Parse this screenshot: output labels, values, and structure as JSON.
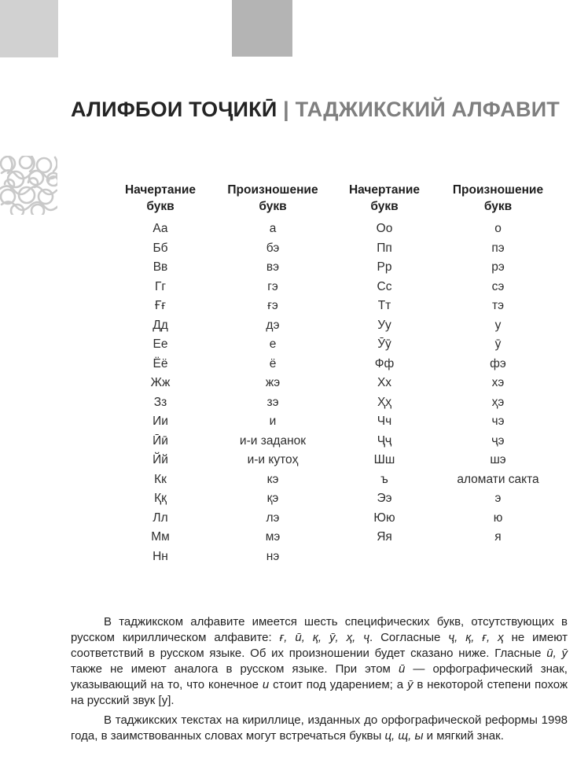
{
  "page": {
    "decor": {
      "left_block_color": "#d1d1d1",
      "right_block_color": "#b4b4b4",
      "ornament_color": "#c9c9c9"
    },
    "title": {
      "tajik": "АЛИФБОИ ТОҶИКӢ",
      "separator": "|",
      "russian": "ТАДЖИКСКИЙ АЛФАВИТ",
      "primary_color": "#242424",
      "secondary_color": "#7f7f7f"
    },
    "table": {
      "headers": [
        {
          "line1": "Начертание",
          "line2": "букв"
        },
        {
          "line1": "Произношение",
          "line2": "букв"
        },
        {
          "line1": "Начертание",
          "line2": "букв"
        },
        {
          "line1": "Произношение",
          "line2": "букв"
        }
      ],
      "left_rows": [
        [
          "Аа",
          "а"
        ],
        [
          "Бб",
          "бэ"
        ],
        [
          "Вв",
          "вэ"
        ],
        [
          "Гг",
          "гэ"
        ],
        [
          "Ғғ",
          "ғэ"
        ],
        [
          "Дд",
          "дэ"
        ],
        [
          "Ее",
          "е"
        ],
        [
          "Ёё",
          "ё"
        ],
        [
          "Жж",
          "жэ"
        ],
        [
          "Зз",
          "зэ"
        ],
        [
          "Ии",
          "и"
        ],
        [
          "Ӣӣ",
          "и-и заданок"
        ],
        [
          "Йй",
          "и-и кутоҳ"
        ],
        [
          "Кк",
          "кэ"
        ],
        [
          "Ққ",
          "қэ"
        ],
        [
          "Лл",
          "лэ"
        ],
        [
          "Мм",
          "мэ"
        ],
        [
          "Нн",
          "нэ"
        ]
      ],
      "right_rows": [
        [
          "Оо",
          "о"
        ],
        [
          "Пп",
          "пэ"
        ],
        [
          "Рр",
          "рэ"
        ],
        [
          "Сс",
          "сэ"
        ],
        [
          "Тт",
          "тэ"
        ],
        [
          "Уу",
          "у"
        ],
        [
          "Ӯӯ",
          "ӯ"
        ],
        [
          "Фф",
          "фэ"
        ],
        [
          "Хх",
          "хэ"
        ],
        [
          "Ҳҳ",
          "ҳэ"
        ],
        [
          "Чч",
          "чэ"
        ],
        [
          "Ҷҷ",
          "ҷэ"
        ],
        [
          "Шш",
          "шэ"
        ],
        [
          "ъ",
          "аломати сакта"
        ],
        [
          "Ээ",
          "э"
        ],
        [
          "Юю",
          "ю"
        ],
        [
          "Яя",
          "я"
        ]
      ]
    },
    "paragraphs": [
      [
        {
          "t": "В таджикском алфавите имеется шесть специфических букв, отсутствующих в русском кириллическом алфавите: ",
          "i": false
        },
        {
          "t": "ғ, ӣ, қ, ӯ, ҳ, ҷ",
          "i": true
        },
        {
          "t": ". Согласные ",
          "i": false
        },
        {
          "t": "ҷ, қ, ғ, ҳ",
          "i": true
        },
        {
          "t": " не имеют соответствий в русском языке. Об их произношении будет сказано ниже. Гласные ",
          "i": false
        },
        {
          "t": "ӣ, ӯ",
          "i": true
        },
        {
          "t": " также не имеют аналога в русском языке. При этом ",
          "i": false
        },
        {
          "t": "ӣ",
          "i": true
        },
        {
          "t": " — орфографический знак, указывающий на то, что конечное ",
          "i": false
        },
        {
          "t": "и",
          "i": true
        },
        {
          "t": " стоит под ударением; а ",
          "i": false
        },
        {
          "t": "ӯ",
          "i": true
        },
        {
          "t": " в некоторой степени похож на русский звук [у].",
          "i": false
        }
      ],
      [
        {
          "t": "В таджикских текстах на кириллице, изданных до орфографической реформы 1998 года, в заимствованных словах могут встречаться буквы ",
          "i": false
        },
        {
          "t": "ц, щ, ы",
          "i": true
        },
        {
          "t": " и мягкий знак.",
          "i": false
        }
      ]
    ]
  }
}
